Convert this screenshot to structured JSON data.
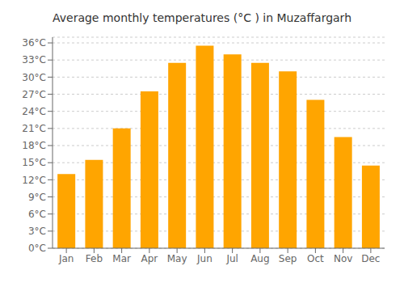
{
  "chart_data": {
    "type": "bar",
    "title": "Average monthly temperatures (°C ) in Muzaffargarh",
    "categories": [
      "Jan",
      "Feb",
      "Mar",
      "Apr",
      "May",
      "Jun",
      "Jul",
      "Aug",
      "Sep",
      "Oct",
      "Nov",
      "Dec"
    ],
    "values": [
      13,
      15.5,
      21,
      27.5,
      32.5,
      35.5,
      34,
      32.5,
      31,
      26,
      19.5,
      14.5
    ],
    "color": "#FFA500",
    "ylim": [
      0,
      37
    ],
    "yticks": [
      {
        "value": 0,
        "label": "0°C"
      },
      {
        "value": 3,
        "label": "3°C"
      },
      {
        "value": 6,
        "label": "6°C"
      },
      {
        "value": 9,
        "label": "9°C"
      },
      {
        "value": 12,
        "label": "12°C"
      },
      {
        "value": 15,
        "label": "15°C"
      },
      {
        "value": 18,
        "label": "18°C"
      },
      {
        "value": 21,
        "label": "21°C"
      },
      {
        "value": 24,
        "label": "24°C"
      },
      {
        "value": 27,
        "label": "27°C"
      },
      {
        "value": 30,
        "label": "30°C"
      },
      {
        "value": 33,
        "label": "33°C"
      },
      {
        "value": 36,
        "label": "36°C"
      }
    ],
    "grid": true
  }
}
